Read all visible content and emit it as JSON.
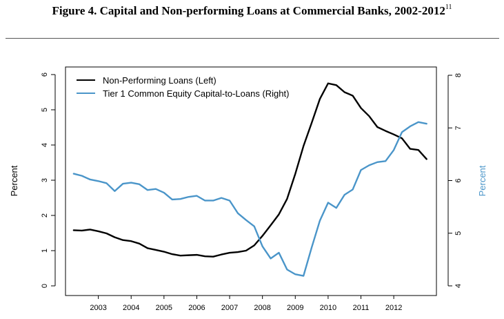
{
  "figure": {
    "title": "Figure 4. Capital and Non-performing Loans at Commercial Banks, 2002-2012",
    "footnote_mark": "11"
  },
  "chart_data": {
    "type": "line",
    "x_unit": "year",
    "xlim": [
      2002.0,
      2013.3
    ],
    "x_ticks": [
      2003,
      2004,
      2005,
      2006,
      2007,
      2008,
      2009,
      2010,
      2011,
      2012
    ],
    "x_tick_labels": [
      "2003",
      "2004",
      "2005",
      "2006",
      "2007",
      "2008",
      "2009",
      "2010",
      "2011",
      "2012"
    ],
    "ylabel_left": "Percent",
    "ylabel_right": "Percent",
    "ylim_left": [
      0,
      6
    ],
    "ylim_right": [
      4,
      8
    ],
    "y_ticks_left": [
      0,
      1,
      2,
      3,
      4,
      5,
      6
    ],
    "y_ticks_right": [
      4,
      5,
      6,
      7,
      8
    ],
    "legend_position": "top-left",
    "series": [
      {
        "name": "Non-Performing Loans (Left)",
        "axis": "left",
        "color": "#000000",
        "x": [
          2002.25,
          2002.5,
          2002.75,
          2003.0,
          2003.25,
          2003.5,
          2003.75,
          2004.0,
          2004.25,
          2004.5,
          2004.75,
          2005.0,
          2005.25,
          2005.5,
          2005.75,
          2006.0,
          2006.25,
          2006.5,
          2006.75,
          2007.0,
          2007.25,
          2007.5,
          2007.75,
          2008.0,
          2008.25,
          2008.5,
          2008.75,
          2009.0,
          2009.25,
          2009.5,
          2009.75,
          2010.0,
          2010.25,
          2010.5,
          2010.75,
          2011.0,
          2011.25,
          2011.5,
          2011.75,
          2012.0,
          2012.25,
          2012.5,
          2012.75,
          2013.0
        ],
        "y": [
          1.58,
          1.57,
          1.6,
          1.55,
          1.49,
          1.38,
          1.3,
          1.27,
          1.2,
          1.07,
          1.02,
          0.97,
          0.9,
          0.86,
          0.87,
          0.88,
          0.84,
          0.83,
          0.89,
          0.94,
          0.96,
          1.0,
          1.15,
          1.42,
          1.72,
          2.03,
          2.47,
          3.18,
          3.97,
          4.63,
          5.31,
          5.75,
          5.7,
          5.5,
          5.4,
          5.05,
          4.82,
          4.51,
          4.4,
          4.3,
          4.19,
          3.89,
          3.86,
          3.6
        ]
      },
      {
        "name": "Tier 1 Common Equity Capital-to-Loans (Right)",
        "axis": "right",
        "color": "#4a95c9",
        "x": [
          2002.25,
          2002.5,
          2002.75,
          2003.0,
          2003.25,
          2003.5,
          2003.75,
          2004.0,
          2004.25,
          2004.5,
          2004.75,
          2005.0,
          2005.25,
          2005.5,
          2005.75,
          2006.0,
          2006.25,
          2006.5,
          2006.75,
          2007.0,
          2007.25,
          2007.5,
          2007.75,
          2008.0,
          2008.25,
          2008.5,
          2008.75,
          2009.0,
          2009.25,
          2009.5,
          2009.75,
          2010.0,
          2010.25,
          2010.5,
          2010.75,
          2011.0,
          2011.25,
          2011.5,
          2011.75,
          2012.0,
          2012.25,
          2012.5,
          2012.75,
          2013.0
        ],
        "y": [
          6.13,
          6.09,
          6.02,
          5.99,
          5.95,
          5.8,
          5.94,
          5.96,
          5.93,
          5.82,
          5.84,
          5.77,
          5.64,
          5.65,
          5.69,
          5.71,
          5.62,
          5.62,
          5.67,
          5.62,
          5.38,
          5.25,
          5.13,
          4.75,
          4.52,
          4.63,
          4.31,
          4.22,
          4.19,
          4.73,
          5.24,
          5.58,
          5.48,
          5.73,
          5.83,
          6.2,
          6.29,
          6.35,
          6.37,
          6.58,
          6.92,
          7.03,
          7.11,
          7.08
        ]
      }
    ]
  }
}
